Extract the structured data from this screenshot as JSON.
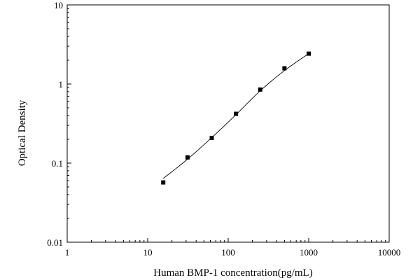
{
  "chart_data": {
    "type": "scatter",
    "xlabel": "Human BMP-1 concentration(pg/mL)",
    "ylabel": "Optical Density",
    "x_scale": "log",
    "y_scale": "log",
    "xlim": [
      1,
      10000
    ],
    "ylim": [
      0.01,
      10
    ],
    "x_ticks": [
      "1",
      "10",
      "100",
      "1000",
      "10000"
    ],
    "y_ticks": [
      "0.01",
      "0.1",
      "1",
      "10"
    ],
    "grid": false,
    "series": [
      {
        "marker": "square",
        "x": [
          15.6,
          31.25,
          62.5,
          125,
          250,
          500,
          1000
        ],
        "y": [
          0.057,
          0.118,
          0.208,
          0.42,
          0.85,
          1.58,
          2.42
        ]
      }
    ],
    "fit_curve": {
      "style": "thin line",
      "x": [
        15.6,
        31.25,
        62.5,
        125,
        250,
        500,
        1000
      ],
      "y": [
        0.064,
        0.112,
        0.21,
        0.41,
        0.82,
        1.48,
        2.42
      ]
    },
    "colors": {
      "axis": "#000000",
      "markers": "#000000",
      "curve": "#000000"
    }
  }
}
